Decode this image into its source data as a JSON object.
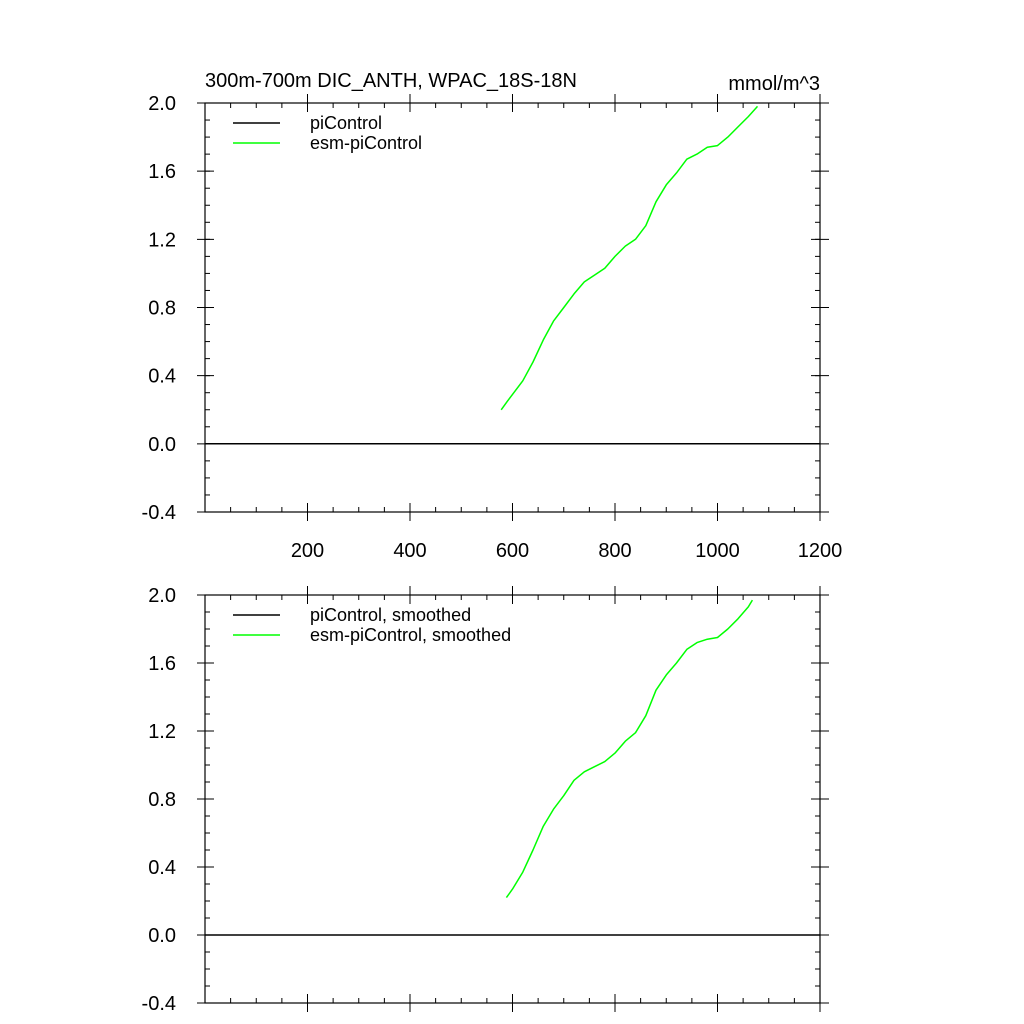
{
  "figure": {
    "title": "300m-700m DIC_ANTH, WPAC_18S-18N",
    "units": "mmol/m^3"
  },
  "chart_data": [
    {
      "type": "line",
      "xlim": [
        0,
        1200
      ],
      "ylim": [
        -0.4,
        2.0
      ],
      "x_ticks": [
        200,
        400,
        600,
        800,
        1000,
        1200
      ],
      "x_tick_labels": [
        "200",
        "400",
        "600",
        "800",
        "1000",
        "1200"
      ],
      "y_ticks": [
        -0.4,
        0.0,
        0.4,
        0.8,
        1.2,
        1.6,
        2.0
      ],
      "y_tick_labels": [
        "-0.4",
        "0.0",
        "0.4",
        "0.8",
        "1.2",
        "1.6",
        "2.0"
      ],
      "legend_position": "top-left",
      "series": [
        {
          "name": "piControl",
          "color": "#000000",
          "x": [
            0,
            1200
          ],
          "y": [
            0.0,
            0.0
          ]
        },
        {
          "name": "esm-piControl",
          "color": "#00ff00",
          "x": [
            578,
            590,
            600,
            620,
            640,
            660,
            680,
            700,
            720,
            740,
            760,
            780,
            800,
            820,
            840,
            860,
            880,
            900,
            920,
            940,
            960,
            980,
            1000,
            1020,
            1040,
            1060,
            1078
          ],
          "y": [
            0.2,
            0.25,
            0.29,
            0.37,
            0.48,
            0.61,
            0.72,
            0.8,
            0.88,
            0.95,
            0.99,
            1.03,
            1.1,
            1.16,
            1.2,
            1.28,
            1.42,
            1.52,
            1.59,
            1.67,
            1.7,
            1.74,
            1.75,
            1.8,
            1.86,
            1.92,
            1.98
          ]
        }
      ]
    },
    {
      "type": "line",
      "xlim": [
        0,
        1200
      ],
      "ylim": [
        -0.4,
        2.0
      ],
      "x_ticks": [
        200,
        400,
        600,
        800,
        1000,
        1200
      ],
      "y_ticks": [
        -0.4,
        0.0,
        0.4,
        0.8,
        1.2,
        1.6,
        2.0
      ],
      "y_tick_labels": [
        "-0.4",
        "0.0",
        "0.4",
        "0.8",
        "1.2",
        "1.6",
        "2.0"
      ],
      "legend_position": "top-left",
      "series": [
        {
          "name": "piControl, smoothed",
          "color": "#000000",
          "x": [
            0,
            1200
          ],
          "y": [
            0.0,
            0.0
          ]
        },
        {
          "name": "esm-piControl, smoothed",
          "color": "#00ff00",
          "x": [
            588,
            600,
            620,
            640,
            660,
            680,
            700,
            720,
            740,
            760,
            780,
            800,
            820,
            840,
            860,
            880,
            900,
            920,
            940,
            960,
            980,
            1000,
            1020,
            1040,
            1060,
            1068
          ],
          "y": [
            0.22,
            0.27,
            0.37,
            0.5,
            0.64,
            0.74,
            0.82,
            0.91,
            0.96,
            0.99,
            1.02,
            1.07,
            1.14,
            1.19,
            1.29,
            1.44,
            1.53,
            1.6,
            1.68,
            1.72,
            1.74,
            1.75,
            1.8,
            1.86,
            1.93,
            1.97
          ]
        }
      ]
    }
  ]
}
